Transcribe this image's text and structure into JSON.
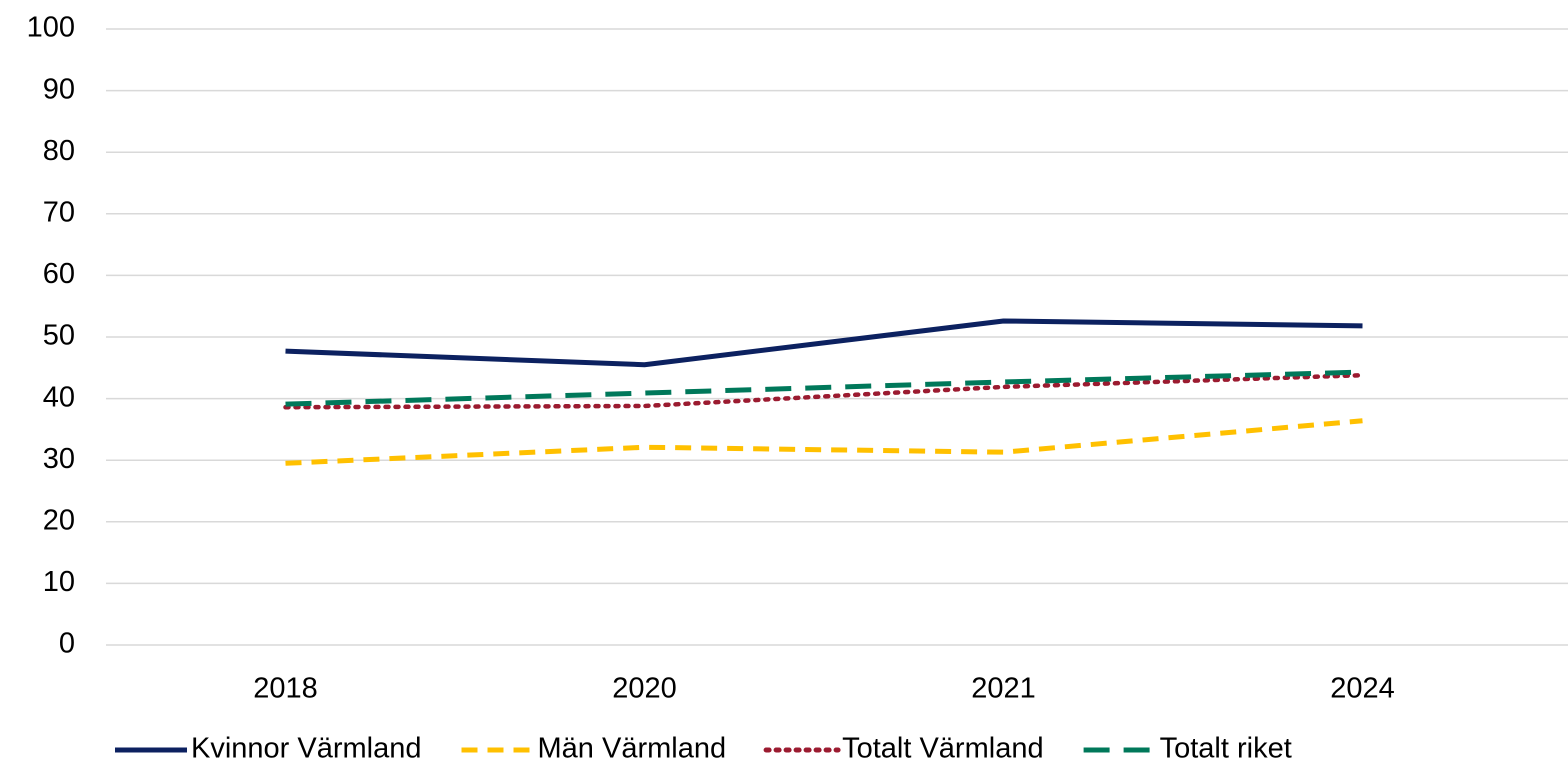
{
  "chart_data": {
    "type": "line",
    "categories": [
      "2018",
      "2020",
      "2021",
      "2024"
    ],
    "series": [
      {
        "name": "Kvinnor Värmland",
        "color": "#0c2160",
        "dash": "solid",
        "values": [
          47.7,
          45.5,
          52.6,
          51.8
        ]
      },
      {
        "name": "Män Värmland",
        "color": "#ffc000",
        "dash": "dashed",
        "values": [
          29.5,
          32.1,
          31.3,
          36.4
        ]
      },
      {
        "name": "Totalt Värmland",
        "color": "#9b1b30",
        "dash": "dotted",
        "values": [
          38.6,
          38.8,
          41.9,
          43.8
        ]
      },
      {
        "name": "Totalt riket",
        "color": "#00785a",
        "dash": "longdash",
        "values": [
          39.1,
          40.9,
          42.7,
          44.3
        ]
      }
    ],
    "ylim": [
      0,
      100
    ],
    "yticks": [
      0,
      10,
      20,
      30,
      40,
      50,
      60,
      70,
      80,
      90,
      100
    ],
    "grid": true,
    "legend": "bottom"
  }
}
